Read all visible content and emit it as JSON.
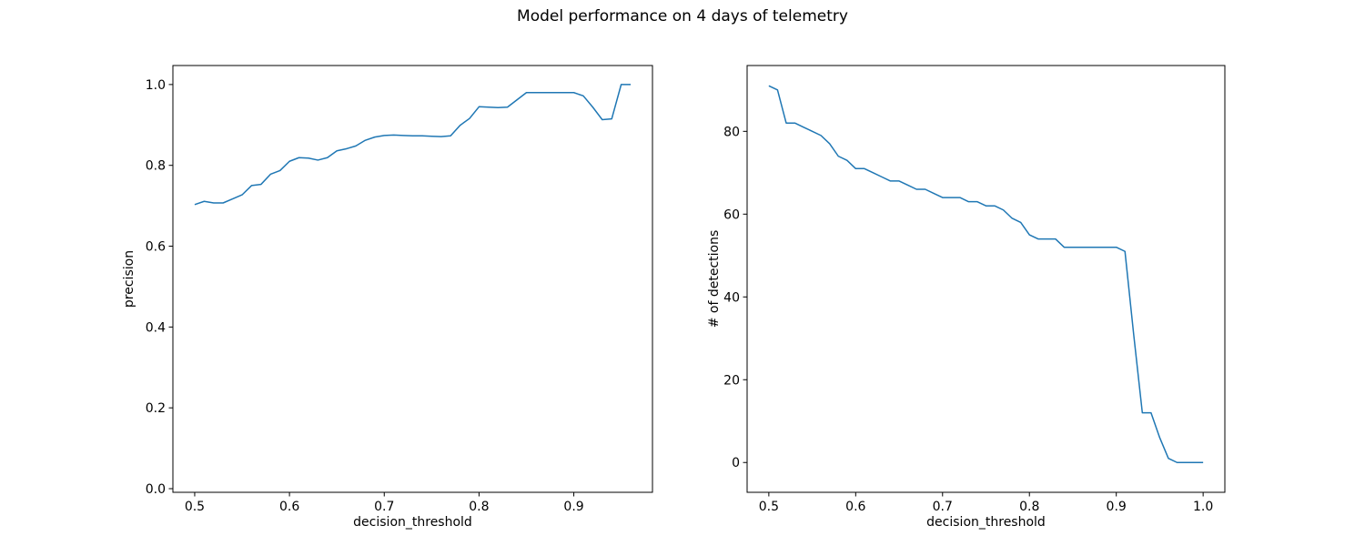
{
  "title": "Model performance on 4 days of telemetry",
  "chart_data": [
    {
      "id": "precision-vs-threshold",
      "type": "line",
      "title": "",
      "xlabel": "decision_threshold",
      "ylabel": "precision",
      "xlim": [
        0.477,
        0.983
      ],
      "ylim": [
        -0.009,
        1.047
      ],
      "grid": false,
      "legend": "none",
      "line_color": "#1f77b4",
      "xticks": [
        0.5,
        0.6,
        0.7,
        0.8,
        0.9
      ],
      "xtick_labels": [
        "0.5",
        "0.6",
        "0.7",
        "0.8",
        "0.9"
      ],
      "yticks": [
        0.0,
        0.2,
        0.4,
        0.6,
        0.8,
        1.0
      ],
      "ytick_labels": [
        "0.0",
        "0.2",
        "0.4",
        "0.6",
        "0.8",
        "1.0"
      ],
      "x": [
        0.5,
        0.51,
        0.52,
        0.53,
        0.54,
        0.55,
        0.56,
        0.57,
        0.58,
        0.59,
        0.6,
        0.61,
        0.62,
        0.63,
        0.64,
        0.65,
        0.66,
        0.67,
        0.68,
        0.69,
        0.7,
        0.71,
        0.72,
        0.73,
        0.74,
        0.75,
        0.76,
        0.77,
        0.78,
        0.79,
        0.8,
        0.81,
        0.82,
        0.83,
        0.84,
        0.85,
        0.86,
        0.87,
        0.88,
        0.89,
        0.9,
        0.91,
        0.92,
        0.93,
        0.94,
        0.95,
        0.96
      ],
      "y": [
        0.703,
        0.711,
        0.707,
        0.707,
        0.717,
        0.727,
        0.75,
        0.753,
        0.778,
        0.787,
        0.81,
        0.819,
        0.818,
        0.813,
        0.819,
        0.836,
        0.841,
        0.848,
        0.862,
        0.87,
        0.874,
        0.875,
        0.874,
        0.873,
        0.873,
        0.872,
        0.871,
        0.873,
        0.899,
        0.916,
        0.945,
        0.944,
        0.943,
        0.944,
        0.962,
        0.98,
        0.98,
        0.98,
        0.98,
        0.98,
        0.98,
        0.972,
        0.944,
        0.913,
        0.915,
        1.0,
        1.0
      ]
    },
    {
      "id": "detections-vs-threshold",
      "type": "line",
      "title": "",
      "xlabel": "decision_threshold",
      "ylabel": "# of detections",
      "xlim": [
        0.475,
        1.025
      ],
      "ylim": [
        -7.2,
        95.9
      ],
      "grid": false,
      "legend": "none",
      "line_color": "#1f77b4",
      "xticks": [
        0.5,
        0.6,
        0.7,
        0.8,
        0.9,
        1.0
      ],
      "xtick_labels": [
        "0.5",
        "0.6",
        "0.7",
        "0.8",
        "0.9",
        "1.0"
      ],
      "yticks": [
        0,
        20,
        40,
        60,
        80
      ],
      "ytick_labels": [
        "0",
        "20",
        "40",
        "60",
        "80"
      ],
      "x": [
        0.5,
        0.51,
        0.52,
        0.53,
        0.54,
        0.55,
        0.56,
        0.57,
        0.58,
        0.59,
        0.6,
        0.61,
        0.62,
        0.63,
        0.64,
        0.65,
        0.66,
        0.67,
        0.68,
        0.69,
        0.7,
        0.71,
        0.72,
        0.73,
        0.74,
        0.75,
        0.76,
        0.77,
        0.78,
        0.79,
        0.8,
        0.81,
        0.82,
        0.83,
        0.84,
        0.85,
        0.86,
        0.87,
        0.88,
        0.89,
        0.9,
        0.91,
        0.92,
        0.93,
        0.94,
        0.95,
        0.96,
        0.97,
        0.98,
        0.99,
        1.0
      ],
      "y": [
        91,
        90,
        82,
        82,
        81,
        80,
        79,
        77,
        74,
        73,
        71,
        71,
        70,
        69,
        68,
        68,
        67,
        66,
        66,
        65,
        64,
        64,
        64,
        63,
        63,
        62,
        62,
        61,
        59,
        58,
        55,
        54,
        54,
        54,
        52,
        52,
        52,
        52,
        52,
        52,
        52,
        51,
        31,
        12,
        12,
        6,
        1,
        0,
        0,
        0,
        0
      ]
    }
  ]
}
